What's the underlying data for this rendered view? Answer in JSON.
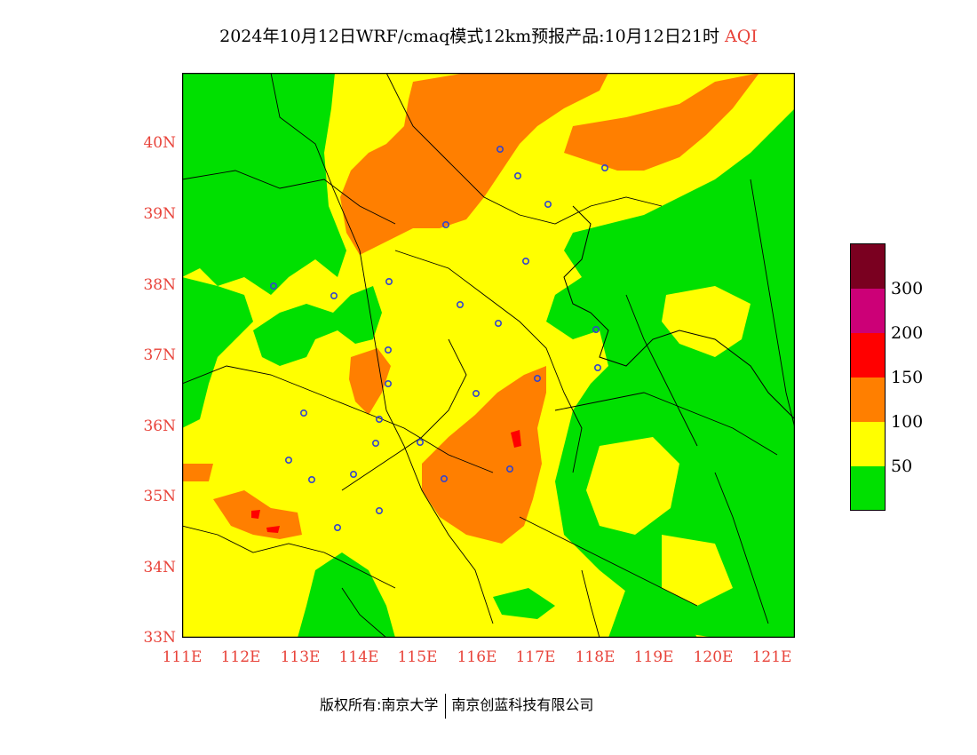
{
  "title": {
    "main": "2024年10月12日WRF/cmaq模式12km预报产品:10月12日21时",
    "pollutant": "AQI"
  },
  "axes": {
    "lat_labels": [
      "40N",
      "39N",
      "38N",
      "37N",
      "36N",
      "35N",
      "34N",
      "33N"
    ],
    "lon_labels": [
      "111E",
      "112E",
      "113E",
      "114E",
      "115E",
      "116E",
      "117E",
      "118E",
      "119E",
      "120E",
      "121E"
    ],
    "lat_range": [
      33,
      41
    ],
    "lon_range": [
      111,
      121.4
    ]
  },
  "legend": {
    "labels": [
      "300",
      "200",
      "150",
      "100",
      "50"
    ],
    "bands": [
      {
        "color": "#7a0020",
        "range": "300+"
      },
      {
        "color": "#cc0077",
        "range": "200-300"
      },
      {
        "color": "#ff0000",
        "range": "150-200"
      },
      {
        "color": "#ff7f00",
        "range": "100-150"
      },
      {
        "color": "#ffff00",
        "range": "50-100"
      },
      {
        "color": "#00e000",
        "range": "0-50"
      }
    ]
  },
  "colors": {
    "good": "#00e000",
    "moderate": "#ffff00",
    "sensitive": "#ff7f00",
    "unhealthy": "#ff0000",
    "label_red": "#e8433a",
    "station_marker": "#3344cc"
  },
  "footer": {
    "copyright": "版权所有:南京大学",
    "company": "南京创蓝科技有限公司"
  }
}
